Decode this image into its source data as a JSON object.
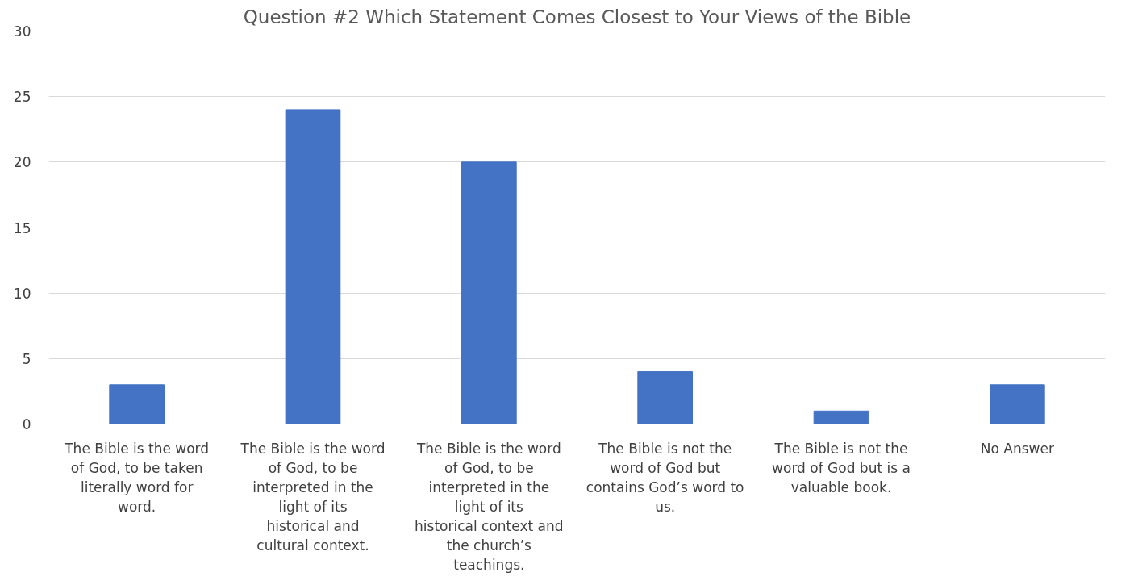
{
  "chart_data": {
    "type": "bar",
    "title": "Question #2 Which Statement Comes Closest to Your Views of the Bible",
    "categories": [
      "The Bible is the word of God, to be taken literally word for word.",
      "The Bible is the word of God, to be interpreted in the light of its historical and cultural context.",
      "The Bible is the word of God, to be interpreted in the light of its historical context and the church’s teachings.",
      "The Bible is not the word of God but contains God’s word to us.",
      "The Bible is not the word of God but is a valuable book.",
      "No Answer"
    ],
    "values": [
      3,
      24,
      20,
      4,
      1,
      3
    ],
    "color": "#4472c4",
    "ylim": [
      0,
      30
    ],
    "yticks": [
      0,
      5,
      10,
      15,
      20,
      25,
      30
    ],
    "grid": "y"
  }
}
